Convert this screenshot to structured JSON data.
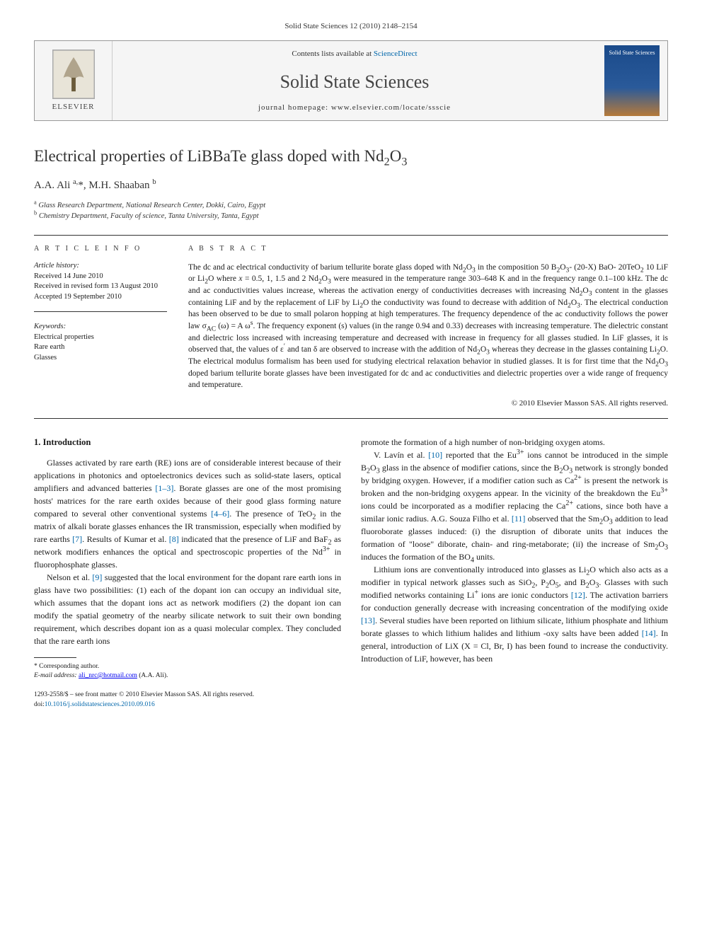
{
  "header": {
    "citation": "Solid State Sciences 12 (2010) 2148–2154",
    "contents_prefix": "Contents lists available at ",
    "contents_link": "ScienceDirect",
    "journal_title": "Solid State Sciences",
    "homepage_prefix": "journal homepage: ",
    "homepage_url": "www.elsevier.com/locate/ssscie",
    "publisher_label": "ELSEVIER",
    "cover_text": "Solid State Sciences"
  },
  "article": {
    "title_html": "Electrical properties of LiBBaTe glass doped with Nd<sub>2</sub>O<sub>3</sub>",
    "authors_html": "A.A. Ali <sup>a,</sup>*, M.H. Shaaban <sup>b</sup>",
    "affiliations": [
      {
        "key": "a",
        "text": "Glass Research Department, National Research Center, Dokki, Cairo, Egypt"
      },
      {
        "key": "b",
        "text": "Chemistry Department, Faculty of science, Tanta University, Tanta, Egypt"
      }
    ]
  },
  "info": {
    "heading": "A R T I C L E   I N F O",
    "history_label": "Article history:",
    "received": "Received 14 June 2010",
    "revised": "Received in revised form 13 August 2010",
    "accepted": "Accepted 19 September 2010",
    "keywords_label": "Keywords:",
    "keywords": [
      "Electrical properties",
      "Rare earth",
      "Glasses"
    ]
  },
  "abstract": {
    "heading": "A B S T R A C T",
    "text_html": "The dc and ac electrical conductivity of barium tellurite borate glass doped with Nd<sub>2</sub>O<sub>3</sub> in the composition 50 B<sub>2</sub>O<sub>3</sub>- (20-X) BaO- 20TeO<sub>2</sub> 10 LiF or Li<sub>2</sub>O where <i>x</i> = 0.5, 1, 1.5 and 2 Nd<sub>2</sub>O<sub>3</sub> were measured in the temperature range 303–648 K and in the frequency range 0.1–100 kHz. The dc and ac conductivities values increase, whereas the activation energy of conductivities decreases with increasing Nd<sub>2</sub>O<sub>3</sub> content in the glasses containing LiF and by the replacement of LiF by Li<sub>2</sub>O the conductivity was found to decrease with addition of Nd<sub>2</sub>O<sub>3</sub>. The electrical conduction has been observed to be due to small polaron hopping at high temperatures. The frequency dependence of the ac conductivity follows the power law σ<sub>AC</sub> (ω) = A ω<sup>s</sup>. The frequency exponent (s) values (in the range 0.94 and 0.33) decreases with increasing temperature. The dielectric constant and dielectric loss increased with increasing temperature and decreased with increase in frequency for all glasses studied. In LiF glasses, it is observed that, the values of ε<sup>′</sup> and tan δ are observed to increase with the addition of Nd<sub>2</sub>O<sub>3</sub> whereas they decrease in the glasses containing Li<sub>2</sub>O. The electrical modulus formalism has been used for studying electrical relaxation behavior in studied glasses. It is for first time that the Nd<sub>2</sub>O<sub>3</sub> doped barium tellurite borate glasses have been investigated for dc and ac conductivities and dielectric properties over a wide range of frequency and temperature.",
    "copyright": "© 2010 Elsevier Masson SAS. All rights reserved."
  },
  "body": {
    "section_heading": "1. Introduction",
    "left_paragraphs_html": [
      "Glasses activated by rare earth (RE) ions are of considerable interest because of their applications in photonics and optoelectronics devices such as solid-state lasers, optical amplifiers and advanced batteries <span class=\"ref\">[1–3]</span>. Borate glasses are one of the most promising hosts' matrices for the rare earth oxides because of their good glass forming nature compared to several other conventional systems <span class=\"ref\">[4–6]</span>. The presence of TeO<sub>2</sub> in the matrix of alkali borate glasses enhances the IR transmission, especially when modified by rare earths <span class=\"ref\">[7]</span>. Results of Kumar et al. <span class=\"ref\">[8]</span> indicated that the presence of LiF and BaF<sub>2</sub> as network modifiers enhances the optical and spectroscopic properties of the Nd<sup>3+</sup> in fluorophosphate glasses.",
      "Nelson et al. <span class=\"ref\">[9]</span> suggested that the local environment for the dopant rare earth ions in glass have two possibilities: (1) each of the dopant ion can occupy an individual site, which assumes that the dopant ions act as network modifiers (2) the dopant ion can modify the spatial geometry of the nearby silicate network to suit their own bonding requirement, which describes dopant ion as a quasi molecular complex. They concluded that the rare earth ions"
    ],
    "right_paragraphs_html": [
      "promote the formation of a high number of non-bridging oxygen atoms.",
      "V. Lavín et al. <span class=\"ref\">[10]</span> reported that the Eu<sup>3+</sup> ions cannot be introduced in the simple B<sub>2</sub>O<sub>3</sub> glass in the absence of modifier cations, since the B<sub>2</sub>O<sub>3</sub> network is strongly bonded by bridging oxygen. However, if a modifier cation such as Ca<sup>2+</sup> is present the network is broken and the non-bridging oxygens appear. In the vicinity of the breakdown the Eu<sup>3+</sup> ions could be incorporated as a modifier replacing the Ca<sup>2+</sup> cations, since both have a similar ionic radius. A.G. Souza Filho et al. <span class=\"ref\">[11]</span> observed that the Sm<sub>2</sub>O<sub>3</sub> addition to lead fluoroborate glasses induced: (i) the disruption of diborate units that induces the formation of \"loose\" diborate, chain- and ring-metaborate; (ii) the increase of Sm<sub>2</sub>O<sub>3</sub> induces the formation of the BO<sub>4</sub> units.",
      "Lithium ions are conventionally introduced into glasses as Li<sub>2</sub>O which also acts as a modifier in typical network glasses such as SiO<sub>2</sub>, P<sub>2</sub>O<sub>5</sub>, and B<sub>2</sub>O<sub>3</sub>. Glasses with such modified networks containing Li<sup>+</sup> ions are ionic conductors <span class=\"ref\">[12]</span>. The activation barriers for conduction generally decrease with increasing concentration of the modifying oxide <span class=\"ref\">[13]</span>. Several studies have been reported on lithium silicate, lithium phosphate and lithium borate glasses to which lithium halides and lithium -oxy salts have been added <span class=\"ref\">[14]</span>. In general, introduction of LiX (X = Cl, Br, I) has been found to increase the conductivity. Introduction of LiF, however, has been"
    ]
  },
  "footnote": {
    "corresponding": "* Corresponding author.",
    "email_label": "E-mail address: ",
    "email": "ali_nrc@hotmail.com",
    "email_suffix": " (A.A. Ali)."
  },
  "footer": {
    "line1": "1293-2558/$ – see front matter © 2010 Elsevier Masson SAS. All rights reserved.",
    "doi_label": "doi:",
    "doi": "10.1016/j.solidstatesciences.2010.09.016"
  }
}
